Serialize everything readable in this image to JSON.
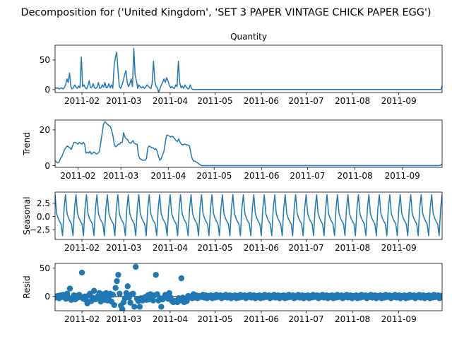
{
  "figure": {
    "suptitle": "Decomposition for ('United Kingdom', 'SET 3 PAPER VINTAGE CHICK PAPER EGG')",
    "line_color": "#1f77b4"
  },
  "chart_data": [
    {
      "id": "observed",
      "type": "line",
      "title": "Quantity",
      "ylabel": "",
      "x_start": "2011-01-14",
      "x_end": "2011-09-30",
      "xticks": [
        "2011-02",
        "2011-03",
        "2011-04",
        "2011-05",
        "2011-06",
        "2011-07",
        "2011-08",
        "2011-09"
      ],
      "yticks": [
        0,
        50
      ],
      "ylim": [
        -5,
        75
      ],
      "series": [
        {
          "values": [
            4,
            2,
            3,
            1,
            2,
            3,
            1,
            3,
            8,
            18,
            12,
            28,
            5,
            1,
            3,
            8,
            4,
            2,
            6,
            3,
            55,
            5,
            8,
            3,
            1,
            6,
            15,
            3,
            4,
            10,
            3,
            2,
            4,
            12,
            2,
            3,
            8,
            4,
            12,
            3,
            4,
            10,
            3,
            8,
            2,
            40,
            55,
            63,
            30,
            5,
            2,
            8,
            15,
            25,
            32,
            12,
            5,
            10,
            18,
            5,
            70,
            25,
            15,
            2,
            8,
            4,
            3,
            5,
            2,
            4,
            8,
            6,
            3,
            2,
            10,
            48,
            15,
            5,
            3,
            -5,
            2,
            8,
            12,
            18,
            12,
            20,
            15,
            8,
            3,
            5,
            3,
            2,
            8,
            5,
            48,
            12,
            3,
            6,
            2,
            8,
            4,
            2,
            1,
            8,
            2,
            0,
            0,
            0,
            0,
            0,
            0,
            0,
            0,
            0,
            0,
            0,
            0,
            0,
            0,
            0,
            0,
            0,
            0,
            0,
            0,
            0,
            0,
            0,
            0,
            0,
            0,
            0,
            0,
            0,
            0,
            0,
            0,
            0,
            0,
            0,
            0,
            0,
            0,
            0,
            0,
            0,
            0,
            0,
            0,
            0,
            0,
            0,
            0,
            0,
            0,
            0,
            0,
            0,
            0,
            0,
            0,
            0,
            0,
            0,
            0,
            0,
            0,
            0,
            0,
            0,
            0,
            0,
            0,
            0,
            0,
            0,
            0,
            0,
            0,
            0,
            0,
            0,
            0,
            0,
            0,
            0,
            0,
            0,
            0,
            0,
            0,
            0,
            0,
            0,
            0,
            0,
            0,
            0,
            0,
            0,
            0,
            0,
            0,
            0,
            0,
            0,
            0,
            0,
            0,
            0,
            0,
            0,
            0,
            0,
            0,
            0,
            0,
            0,
            0,
            0,
            0,
            0,
            0,
            0,
            0,
            0,
            0,
            0,
            0,
            0,
            0,
            0,
            0,
            0,
            0,
            0,
            0,
            0,
            0,
            0,
            0,
            0,
            0,
            0,
            0,
            0,
            0,
            0,
            0,
            0,
            0,
            0,
            0,
            0,
            0,
            0,
            0,
            0,
            0,
            0,
            0,
            0,
            0,
            0,
            0,
            0,
            0,
            0,
            0,
            0,
            0,
            0,
            0,
            0,
            0,
            0,
            0,
            0,
            0,
            0,
            0,
            0,
            0,
            0,
            0,
            0,
            0,
            0,
            0,
            0,
            0,
            0,
            0,
            0,
            0,
            6
          ]
        }
      ]
    },
    {
      "id": "trend",
      "type": "line",
      "title": "",
      "ylabel": "Trend",
      "x_start": "2011-01-17",
      "x_end": "2011-09-27",
      "xticks": [
        "2011-02",
        "2011-03",
        "2011-04",
        "2011-05",
        "2011-06",
        "2011-07",
        "2011-08",
        "2011-09"
      ],
      "yticks": [
        0,
        20
      ],
      "ylim": [
        -1,
        25.5
      ],
      "series": [
        {
          "values": [
            3,
            2,
            1.5,
            2,
            4,
            5,
            7,
            9,
            10,
            11,
            10.5,
            10,
            9,
            11,
            13,
            13,
            12.5,
            12,
            13,
            12.5,
            12,
            13,
            12,
            7,
            7.5,
            7,
            8,
            6.5,
            7,
            7.5,
            7,
            6.5,
            7,
            8,
            13,
            18,
            23,
            24.5,
            24,
            23,
            22.5,
            22,
            20,
            17,
            12,
            10.5,
            11,
            12,
            12,
            13,
            13,
            18.5,
            16,
            15,
            14.5,
            13,
            12.5,
            13,
            14,
            12.5,
            12,
            12,
            6,
            4,
            3.5,
            3,
            3,
            3,
            4,
            10,
            11,
            10.5,
            10,
            10,
            9,
            9.5,
            8,
            5,
            3,
            4,
            6,
            8,
            13,
            17,
            17,
            16.5,
            16,
            16.5,
            16,
            15,
            14,
            13.5,
            15,
            13,
            12,
            11.5,
            12,
            12,
            11.5,
            11.5,
            11,
            7,
            4,
            2.5,
            2.5,
            2,
            1.5,
            1,
            0.5,
            0,
            0,
            0,
            0,
            0,
            0,
            0,
            0,
            0,
            0,
            0,
            0,
            0,
            0,
            0,
            0,
            0,
            0,
            0,
            0,
            0,
            0,
            0,
            0,
            0,
            0,
            0,
            0,
            0,
            0,
            0,
            0,
            0,
            0,
            0,
            0,
            0,
            0,
            0,
            0,
            0,
            0,
            0,
            0,
            0,
            0,
            0,
            0,
            0,
            0,
            0,
            0,
            0,
            0,
            0,
            0,
            0,
            0,
            0,
            0,
            0,
            0,
            0,
            0,
            0,
            0,
            0,
            0,
            0,
            0,
            0,
            0,
            0,
            0,
            0,
            0,
            0,
            0,
            0,
            0,
            0,
            0,
            0,
            0,
            0,
            0,
            0,
            0,
            0,
            0,
            0,
            0,
            0,
            0,
            0,
            0,
            0,
            0,
            0,
            0,
            0,
            0,
            0,
            0,
            0,
            0,
            0,
            0,
            0,
            0,
            0,
            0,
            0,
            0,
            0,
            0,
            0,
            0,
            0,
            0,
            0,
            0,
            0,
            0,
            0,
            0,
            0,
            0,
            0,
            0,
            0,
            0,
            0,
            0,
            0,
            0,
            0,
            0,
            0,
            0,
            0,
            0,
            0,
            0,
            0,
            0,
            0,
            0,
            0,
            0,
            0,
            0,
            0,
            0,
            0,
            0,
            0,
            0,
            0,
            0,
            0,
            0,
            0,
            0,
            0,
            0,
            0,
            0,
            0,
            0,
            0,
            0,
            0,
            0,
            0,
            0,
            0,
            0,
            0.3,
            1
          ]
        }
      ]
    },
    {
      "id": "seasonal",
      "type": "line",
      "title": "",
      "ylabel": "Seasonal",
      "x_start": "2011-01-14",
      "x_end": "2011-09-30",
      "xticks": [
        "2011-02",
        "2011-03",
        "2011-04",
        "2011-05",
        "2011-06",
        "2011-07",
        "2011-08",
        "2011-09"
      ],
      "yticks": [
        -2.5,
        0.0,
        2.5
      ],
      "ytick_labels": [
        "−2.5",
        "0.0",
        "2.5"
      ],
      "ylim": [
        -4.3,
        4.6
      ],
      "period": 7,
      "pattern": [
        4.1,
        0.6,
        -0.3,
        -0.9,
        -1.4,
        -3.6,
        1.5
      ]
    },
    {
      "id": "resid",
      "type": "scatter",
      "title": "",
      "ylabel": "Resid",
      "x_start": "2011-01-14",
      "x_end": "2011-09-30",
      "xticks": [
        "2011-02",
        "2011-03",
        "2011-04",
        "2011-05",
        "2011-06",
        "2011-07",
        "2011-08",
        "2011-09"
      ],
      "yticks": [
        0,
        50
      ],
      "ylim": [
        -25,
        58
      ],
      "baseline": 0,
      "series": [
        {
          "values": [
            -2,
            0,
            1,
            -3,
            2,
            -1,
            3,
            0,
            -4,
            5,
            -2,
            14,
            -6,
            -3,
            2,
            -5,
            1,
            -2,
            3,
            -1,
            42,
            -4,
            0,
            -6,
            -12,
            2,
            5,
            -8,
            -2,
            10,
            -5,
            -3,
            1,
            6,
            -9,
            -2,
            4,
            -6,
            6,
            -7,
            -1,
            5,
            -9,
            3,
            -15,
            15,
            27,
            38,
            5,
            -16,
            -22,
            -10,
            -3,
            6,
            18,
            -2,
            -11,
            4,
            5,
            -18,
            52,
            -4,
            -8,
            -18,
            -3,
            -7,
            -3,
            -1,
            -6,
            2,
            -5,
            4,
            -2,
            -7,
            2,
            38,
            4,
            -7,
            -3,
            -18,
            -5,
            -2,
            3,
            2,
            -4,
            6,
            -2,
            -8,
            -10,
            -8,
            -8,
            -10,
            -3,
            -7,
            32,
            -2,
            -10,
            -5,
            -8,
            1,
            0,
            -2,
            -3,
            4,
            -2,
            2,
            -3,
            1,
            0,
            -1,
            3,
            -2,
            2,
            -3,
            1,
            -1,
            2,
            -3,
            1,
            -2,
            3,
            -1,
            0,
            2,
            -3,
            1,
            -1,
            3,
            -2,
            0,
            2,
            -3,
            1,
            -1,
            2,
            -3,
            1,
            -2,
            3,
            -1,
            0,
            2,
            -3,
            1,
            -1,
            3,
            -2,
            0,
            2,
            -3,
            1,
            -1,
            2,
            -3,
            1,
            -2,
            3,
            -1,
            0,
            2,
            -3,
            1,
            -1,
            3,
            -2,
            0,
            2,
            -3,
            1,
            -1,
            2,
            -3,
            1,
            -2,
            3,
            -1,
            0,
            2,
            -3,
            1,
            -1,
            3,
            -2,
            0,
            2,
            -3,
            1,
            -1,
            2,
            -3,
            1,
            -2,
            3,
            -1,
            0,
            2,
            -3,
            1,
            -1,
            3,
            -2,
            0,
            2,
            -3,
            1,
            -1,
            2,
            -3,
            1,
            -2,
            3,
            -1,
            0,
            2,
            -3,
            1,
            -1,
            3,
            -2,
            0,
            2,
            -3,
            1,
            -1,
            2,
            -3,
            1,
            -2,
            3,
            -1,
            0,
            2,
            -3,
            1,
            -1,
            3,
            -2,
            0,
            2,
            -3,
            1,
            -1,
            2,
            -3,
            1,
            -2,
            3,
            -1,
            0,
            2,
            -3,
            1,
            -1,
            3,
            -2,
            0,
            2,
            -3,
            1,
            -1,
            2,
            -3,
            1,
            -2,
            3,
            -1,
            0,
            2,
            -3,
            1,
            -1,
            3,
            -2,
            0,
            2,
            -3,
            1,
            -1,
            2,
            -3,
            1,
            -2,
            3,
            -1,
            0,
            2,
            -3,
            1,
            0
          ]
        }
      ]
    }
  ]
}
